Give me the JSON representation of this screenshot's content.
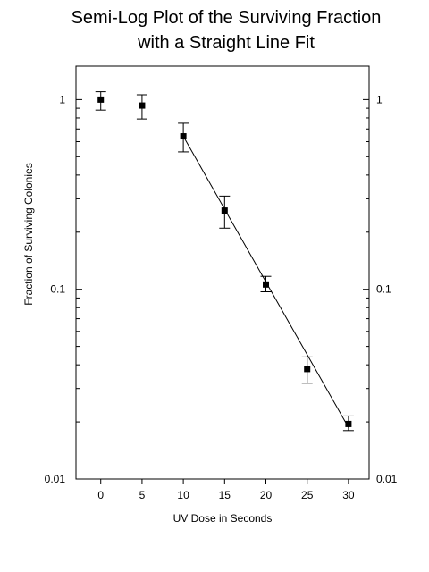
{
  "chart_data": {
    "type": "scatter",
    "title_lines": [
      "Semi-Log Plot of the Surviving Fraction",
      "with a Straight Line Fit"
    ],
    "xlabel": "UV Dose in Seconds",
    "ylabel": "Fraction of Surviving Colonies",
    "xlim": [
      -3,
      32.5
    ],
    "ylim": [
      0.01,
      1.5
    ],
    "yscale": "log",
    "x_ticks": [
      0,
      5,
      10,
      15,
      20,
      25,
      30
    ],
    "x_tick_labels": [
      "0",
      "5",
      "10",
      "15",
      "20",
      "25",
      "30"
    ],
    "y_ticks": [
      1,
      0.1,
      0.01
    ],
    "y_tick_labels": [
      "1",
      "0.1",
      "0.01"
    ],
    "right_y_tick_labels": [
      "1",
      "0.1",
      "0.01"
    ],
    "grid": false,
    "series": [
      {
        "marker": "square",
        "points": [
          {
            "x": 0,
            "y": 1.0,
            "err_low": 0.88,
            "err_high": 1.1
          },
          {
            "x": 5,
            "y": 0.93,
            "err_low": 0.79,
            "err_high": 1.06
          },
          {
            "x": 10,
            "y": 0.64,
            "err_low": 0.53,
            "err_high": 0.75
          },
          {
            "x": 15,
            "y": 0.26,
            "err_low": 0.21,
            "err_high": 0.31
          },
          {
            "x": 20,
            "y": 0.106,
            "err_low": 0.097,
            "err_high": 0.117
          },
          {
            "x": 25,
            "y": 0.038,
            "err_low": 0.032,
            "err_high": 0.044
          },
          {
            "x": 30,
            "y": 0.0195,
            "err_low": 0.018,
            "err_high": 0.0215
          }
        ]
      }
    ],
    "fit_line": {
      "x": [
        10,
        30
      ],
      "y": [
        0.64,
        0.0187
      ]
    }
  }
}
